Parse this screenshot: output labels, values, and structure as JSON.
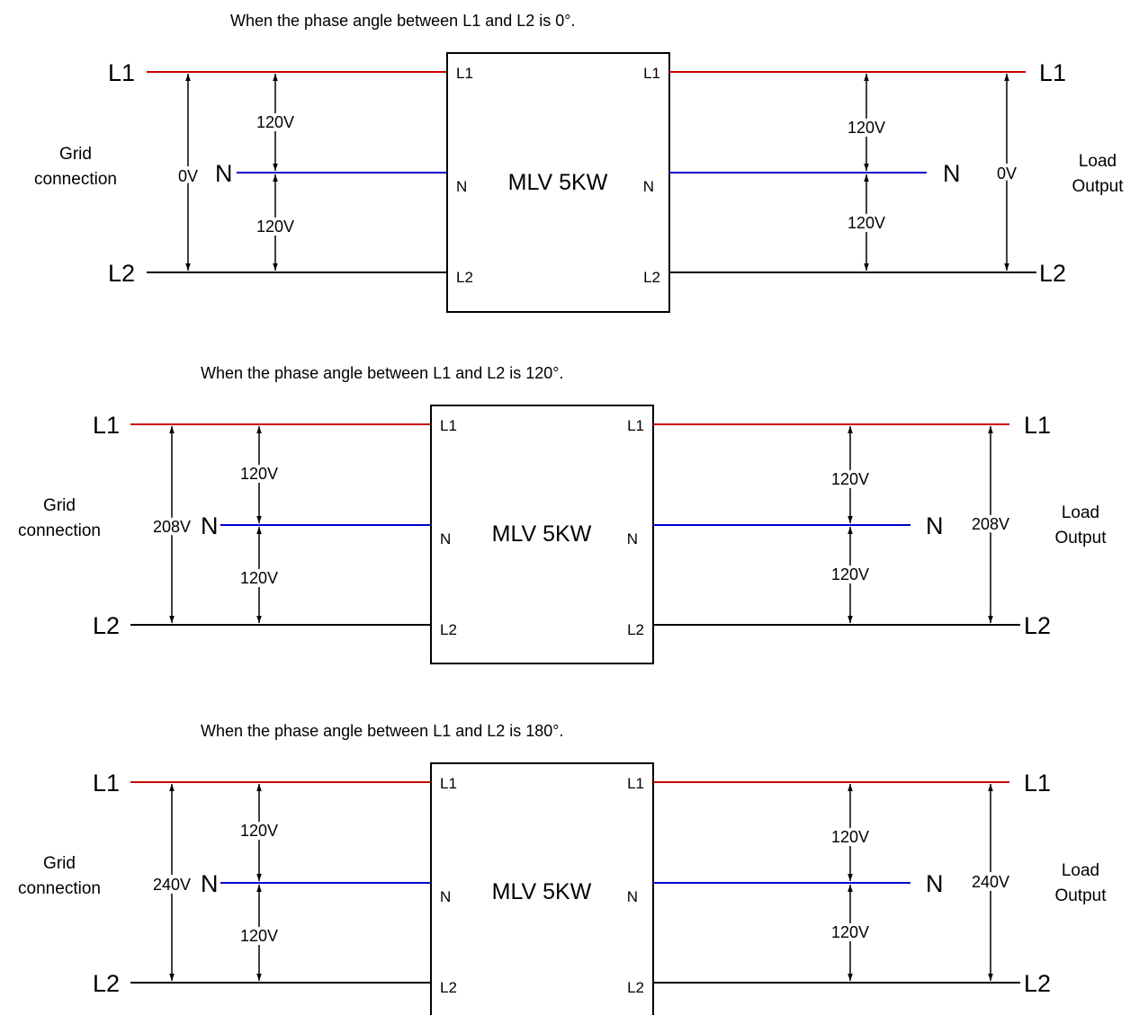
{
  "colors": {
    "l1_wire": "#cc0000",
    "n_wire": "#0000cc",
    "l2_wire": "#000000"
  },
  "panels": [
    {
      "caption": "When the phase angle between L1 and L2 is 0°.",
      "grid_label_line1": "Grid",
      "grid_label_line2": "connection",
      "load_label_line1": "Load",
      "load_label_line2": "Output",
      "model": "MLV 5KW",
      "term_l1": "L1",
      "term_n": "N",
      "term_l2": "L2",
      "pin_l1": "L1",
      "pin_n": "N",
      "pin_l2": "L2",
      "grid_line_voltage": "0V",
      "grid_upper_phase_voltage": "120V",
      "grid_lower_phase_voltage": "120V",
      "load_line_voltage": "0V",
      "load_upper_phase_voltage": "120V",
      "load_lower_phase_voltage": "120V"
    },
    {
      "caption": "When the phase angle between L1 and L2 is 120°.",
      "grid_label_line1": "Grid",
      "grid_label_line2": "connection",
      "load_label_line1": "Load",
      "load_label_line2": "Output",
      "model": "MLV 5KW",
      "term_l1": "L1",
      "term_n": "N",
      "term_l2": "L2",
      "pin_l1": "L1",
      "pin_n": "N",
      "pin_l2": "L2",
      "grid_line_voltage": "208V",
      "grid_upper_phase_voltage": "120V",
      "grid_lower_phase_voltage": "120V",
      "load_line_voltage": "208V",
      "load_upper_phase_voltage": "120V",
      "load_lower_phase_voltage": "120V"
    },
    {
      "caption": "When the phase angle between L1 and L2 is 180°.",
      "grid_label_line1": "Grid",
      "grid_label_line2": "connection",
      "load_label_line1": "Load",
      "load_label_line2": "Output",
      "model": "MLV 5KW",
      "term_l1": "L1",
      "term_n": "N",
      "term_l2": "L2",
      "pin_l1": "L1",
      "pin_n": "N",
      "pin_l2": "L2",
      "grid_line_voltage": "240V",
      "grid_upper_phase_voltage": "120V",
      "grid_lower_phase_voltage": "120V",
      "load_line_voltage": "240V",
      "load_upper_phase_voltage": "120V",
      "load_lower_phase_voltage": "120V"
    }
  ]
}
